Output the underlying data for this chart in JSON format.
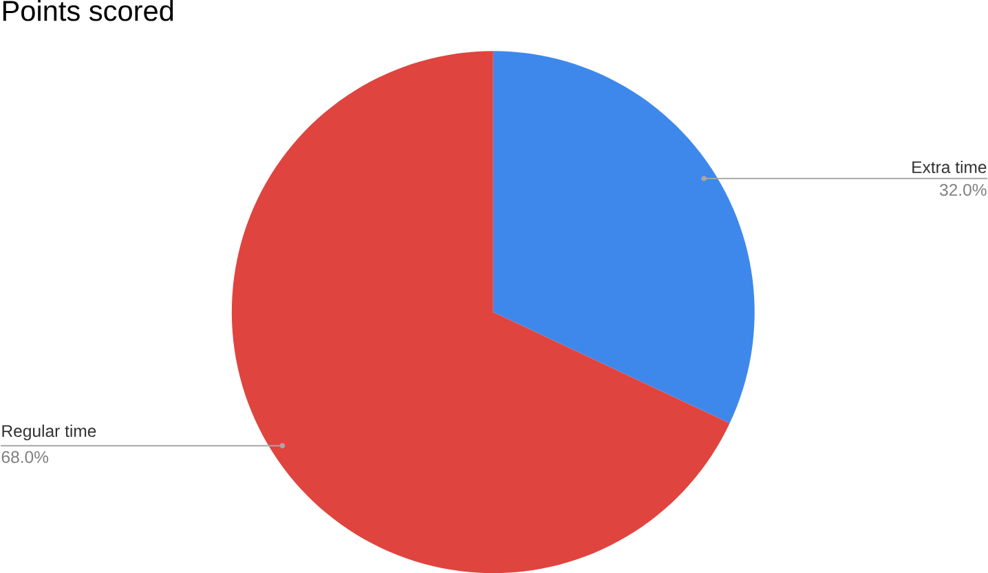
{
  "chart_data": {
    "type": "pie",
    "title": "Points scored",
    "categories": [
      "Extra time",
      "Regular time"
    ],
    "values": [
      32,
      68
    ],
    "colors": [
      "#3f88eb",
      "#e0443e"
    ],
    "value_labels": [
      "32.0%",
      "68.0%"
    ]
  }
}
